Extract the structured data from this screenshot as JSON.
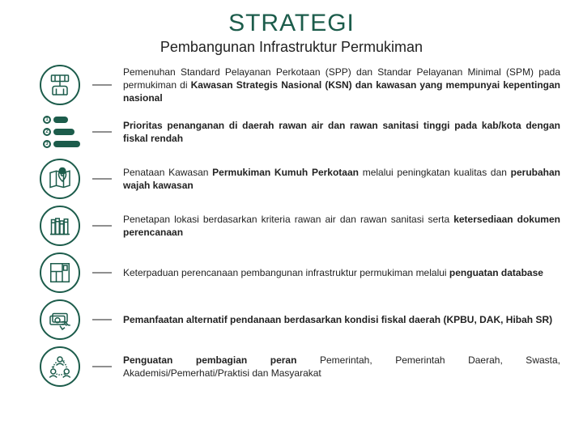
{
  "colors": {
    "accent": "#1c5c4b",
    "text": "#222222",
    "connector": "#8f8f8f",
    "background": "#ffffff"
  },
  "title": "STRATEGI",
  "subtitle": "Pembangunan Infrastruktur Permukiman",
  "items": [
    {
      "icon": "building-plan",
      "pre": "Pemenuhan Standard Pelayanan Perkotaan (SPP) dan Standar Pelayanan Minimal (SPM) pada permukiman di ",
      "bold": "Kawasan Strategis Nasional (KSN) dan kawasan yang mempunyai kepentingan nasional",
      "post": ""
    },
    {
      "icon": "priorities",
      "pre": "",
      "bold": "Prioritas penanganan di daerah rawan air dan rawan sanitasi tinggi pada kab/kota dengan fiskal rendah",
      "post": ""
    },
    {
      "icon": "map-pin",
      "pre": "Penataan Kawasan ",
      "bold": "Permukiman Kumuh Perkotaan",
      "mid": " melalui peningkatan kualitas dan ",
      "bold2": "perubahan wajah kawasan",
      "post": ""
    },
    {
      "icon": "books",
      "pre": "Penetapan lokasi berdasarkan kriteria rawan air dan rawan sanitasi serta ",
      "bold": "ketersediaan dokumen perencanaan",
      "post": ""
    },
    {
      "icon": "blueprint",
      "pre": "Keterpaduan perencanaan pembangunan infrastruktur permukiman melalui ",
      "bold": "penguatan database",
      "post": ""
    },
    {
      "icon": "money",
      "pre": "",
      "bold": "Pemanfaatan alternatif pendanaan berdasarkan kondisi fiskal daerah (KPBU, DAK, Hibah SR)",
      "post": ""
    },
    {
      "icon": "stakeholders",
      "pre": "",
      "bold": "Penguatan pembagian peran",
      "post": " Pemerintah, Pemerintah Daerah, Swasta, Akademisi/Pemerhati/Praktisi dan Masyarakat"
    }
  ],
  "priorities_bars": [
    18,
    26,
    34
  ]
}
